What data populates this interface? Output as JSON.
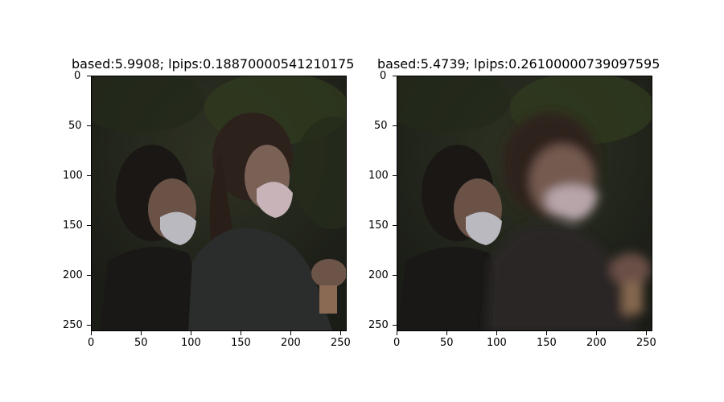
{
  "figure": {
    "panels": [
      {
        "title": "based:5.9908; lpips:0.18870000541210175",
        "image": {
          "description_icon": "photo-two-women-masked",
          "blurred_subject": false
        },
        "x_ticks": [
          "0",
          "50",
          "100",
          "150",
          "200",
          "250"
        ],
        "y_ticks": [
          "0",
          "50",
          "100",
          "150",
          "200",
          "250"
        ]
      },
      {
        "title": "based:5.4739; lpips:0.26100000739097595",
        "image": {
          "description_icon": "photo-two-women-masked-blurred",
          "blurred_subject": true
        },
        "x_ticks": [
          "0",
          "50",
          "100",
          "150",
          "200",
          "250"
        ],
        "y_ticks": [
          "0",
          "50",
          "100",
          "150",
          "200",
          "250"
        ]
      }
    ]
  }
}
